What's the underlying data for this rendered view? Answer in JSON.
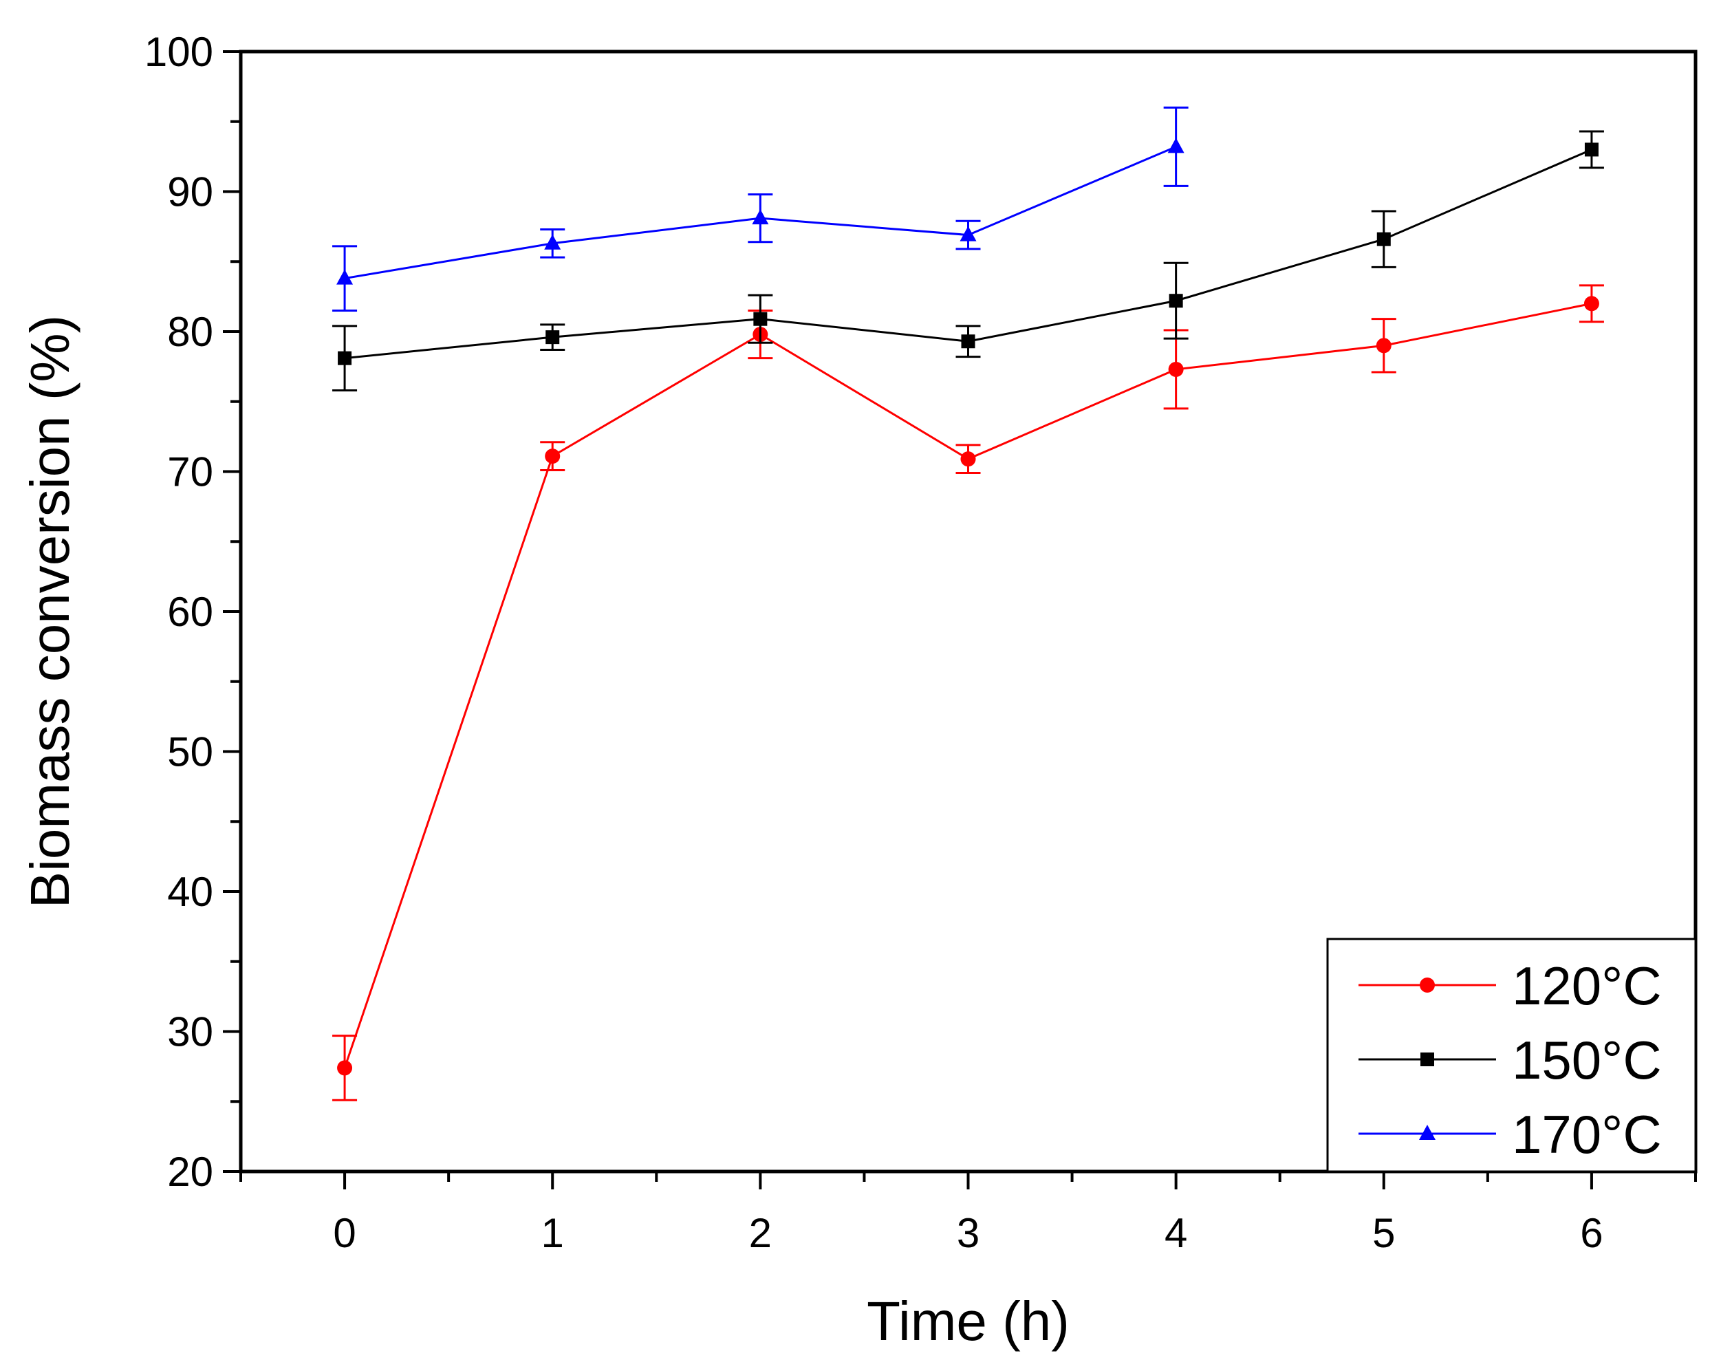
{
  "chart_data": {
    "type": "line",
    "title": "",
    "xlabel": "Time (h)",
    "ylabel": "Biomass conversion (%)",
    "xlim": [
      -0.5,
      6.5
    ],
    "ylim": [
      20,
      100
    ],
    "xticks": [
      0,
      1,
      2,
      3,
      4,
      5,
      6
    ],
    "yticks": [
      20,
      30,
      40,
      50,
      60,
      70,
      80,
      90,
      100
    ],
    "grid": false,
    "legend_position": "bottom-right",
    "series": [
      {
        "name": "120°C",
        "color": "#ff0000",
        "marker": "circle",
        "x": [
          0,
          1,
          2,
          3,
          4,
          5,
          6
        ],
        "values": [
          27.4,
          71.1,
          79.8,
          70.9,
          77.3,
          79.0,
          82.0
        ],
        "errors": [
          2.3,
          1.0,
          1.7,
          1.0,
          2.8,
          1.9,
          1.3
        ]
      },
      {
        "name": "150°C",
        "color": "#000000",
        "marker": "square",
        "x": [
          0,
          1,
          2,
          3,
          4,
          5,
          6
        ],
        "values": [
          78.1,
          79.6,
          80.9,
          79.3,
          82.2,
          86.6,
          93.0
        ],
        "errors": [
          2.3,
          0.9,
          1.7,
          1.1,
          2.7,
          2.0,
          1.3
        ]
      },
      {
        "name": "170°C",
        "color": "#0000ff",
        "marker": "triangle",
        "x": [
          0,
          1,
          2,
          3,
          4
        ],
        "values": [
          83.8,
          86.3,
          88.1,
          86.9,
          93.2
        ],
        "errors": [
          2.3,
          1.0,
          1.7,
          1.0,
          2.8
        ]
      }
    ]
  }
}
